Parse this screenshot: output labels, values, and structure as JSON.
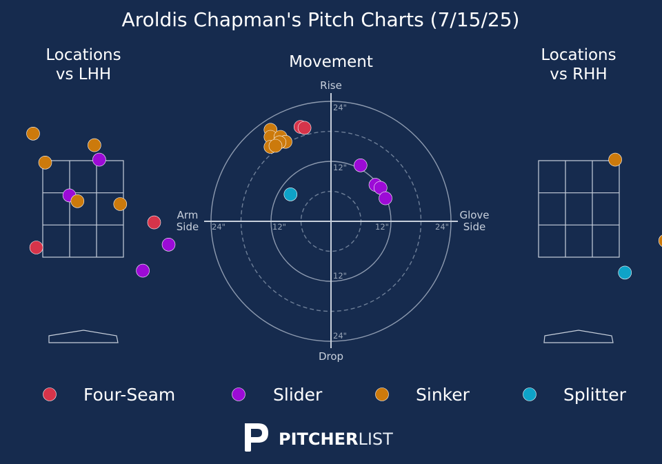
{
  "title": "Aroldis Chapman's Pitch Charts (7/15/25)",
  "colors": {
    "background": "#162b4e",
    "Four-Seam": "#d6344a",
    "Slider": "#9c0bd6",
    "Sinker": "#cc7a0c",
    "Splitter": "#0ea3c8"
  },
  "legend": [
    "Four-Seam",
    "Slider",
    "Sinker",
    "Splitter"
  ],
  "brand": {
    "bold": "PITCHER",
    "light": "LIST",
    "icon": "pitcherlist-logo-icon"
  },
  "chart_data": [
    {
      "type": "scatter",
      "title_lines": [
        "Locations",
        "vs LHH"
      ],
      "xlabel": "",
      "ylabel": "",
      "grid": "3x3 strike zone",
      "points": [
        {
          "pitch": "Sinker",
          "col": -0.62,
          "row": 1.28
        },
        {
          "pitch": "Sinker",
          "col": 0.14,
          "row": 1.16
        },
        {
          "pitch": "Sinker",
          "col": -0.47,
          "row": 0.98
        },
        {
          "pitch": "Slider",
          "col": 0.2,
          "row": 1.01
        },
        {
          "pitch": "Slider",
          "col": -0.17,
          "row": 0.64
        },
        {
          "pitch": "Sinker",
          "col": -0.07,
          "row": 0.58
        },
        {
          "pitch": "Sinker",
          "col": 0.46,
          "row": 0.55
        },
        {
          "pitch": "Four-Seam",
          "col": 0.88,
          "row": 0.36
        },
        {
          "pitch": "Four-Seam",
          "col": -0.58,
          "row": 0.1
        },
        {
          "pitch": "Slider",
          "col": 1.06,
          "row": 0.13
        },
        {
          "pitch": "Slider",
          "col": 0.74,
          "row": -0.14
        }
      ]
    },
    {
      "type": "scatter",
      "title_lines": [
        "Movement"
      ],
      "xlabel": "",
      "ylabel": "",
      "direction_labels": {
        "top": "Rise",
        "bottom": "Drop",
        "left": [
          "Arm",
          "Side"
        ],
        "right": [
          "Glove",
          "Side"
        ]
      },
      "ring_labels": [
        "12\"",
        "24\""
      ],
      "axis_range_in": [
        -24,
        24
      ],
      "points": [
        {
          "pitch": "Four-Seam",
          "h": -6.1,
          "v": 18.9
        },
        {
          "pitch": "Four-Seam",
          "h": -5.3,
          "v": 18.7
        },
        {
          "pitch": "Sinker",
          "h": -12.1,
          "v": 18.3
        },
        {
          "pitch": "Sinker",
          "h": -12.1,
          "v": 16.9
        },
        {
          "pitch": "Sinker",
          "h": -10.1,
          "v": 16.9
        },
        {
          "pitch": "Sinker",
          "h": -9.1,
          "v": 15.9
        },
        {
          "pitch": "Sinker",
          "h": -10.3,
          "v": 15.8
        },
        {
          "pitch": "Sinker",
          "h": -12.1,
          "v": 14.9
        },
        {
          "pitch": "Sinker",
          "h": -11.1,
          "v": 15.1
        },
        {
          "pitch": "Slider",
          "h": 5.9,
          "v": 11.2
        },
        {
          "pitch": "Slider",
          "h": 8.9,
          "v": 7.3
        },
        {
          "pitch": "Slider",
          "h": 9.9,
          "v": 6.7
        },
        {
          "pitch": "Slider",
          "h": 10.9,
          "v": 4.6
        },
        {
          "pitch": "Splitter",
          "h": -8.1,
          "v": 5.4
        }
      ]
    },
    {
      "type": "scatter",
      "title_lines": [
        "Locations",
        "vs RHH"
      ],
      "xlabel": "",
      "ylabel": "",
      "grid": "3x3 strike zone",
      "points": [
        {
          "pitch": "Sinker",
          "col": 0.45,
          "row": 1.01
        },
        {
          "pitch": "Sinker",
          "col": 1.07,
          "row": 0.17
        },
        {
          "pitch": "Splitter",
          "col": 0.57,
          "row": -0.16
        }
      ]
    }
  ]
}
